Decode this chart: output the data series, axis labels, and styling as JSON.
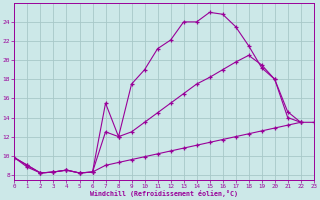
{
  "xlabel": "Windchill (Refroidissement éolien,°C)",
  "background_color": "#cce8e8",
  "grid_color": "#a8c8c8",
  "line_color": "#990099",
  "xlim": [
    0,
    23
  ],
  "ylim": [
    7.5,
    26.0
  ],
  "xticks": [
    0,
    1,
    2,
    3,
    4,
    5,
    6,
    7,
    8,
    9,
    10,
    11,
    12,
    13,
    14,
    15,
    16,
    17,
    18,
    19,
    20,
    21,
    22,
    23
  ],
  "yticks": [
    8,
    10,
    12,
    14,
    16,
    18,
    20,
    22,
    24
  ],
  "curve1_x": [
    0,
    1,
    2,
    3,
    4,
    5,
    6,
    7,
    8,
    9,
    10,
    11,
    12,
    13,
    14,
    15,
    16,
    17,
    18,
    19,
    20,
    21,
    22
  ],
  "curve1_y": [
    9.8,
    9.0,
    8.2,
    8.3,
    8.5,
    8.2,
    8.3,
    15.5,
    12.0,
    17.5,
    19.0,
    21.2,
    22.1,
    24.0,
    24.0,
    25.0,
    24.8,
    23.5,
    21.5,
    19.2,
    18.0,
    14.6,
    13.5
  ],
  "curve2_x": [
    0,
    1,
    2,
    3,
    4,
    5,
    6,
    7,
    8,
    9,
    10,
    11,
    12,
    13,
    14,
    15,
    16,
    17,
    18,
    19,
    20,
    21,
    22
  ],
  "curve2_y": [
    9.8,
    9.0,
    8.2,
    8.3,
    8.5,
    8.2,
    8.3,
    12.5,
    12.0,
    12.5,
    13.5,
    14.5,
    15.5,
    16.5,
    17.5,
    18.2,
    19.0,
    19.8,
    20.5,
    19.5,
    18.0,
    14.0,
    13.5
  ],
  "curve3_x": [
    0,
    1,
    2,
    3,
    4,
    5,
    6,
    7,
    8,
    9,
    10,
    11,
    12,
    13,
    14,
    15,
    16,
    17,
    18,
    19,
    20,
    21,
    22,
    23
  ],
  "curve3_y": [
    9.8,
    8.8,
    8.2,
    8.3,
    8.5,
    8.2,
    8.3,
    9.0,
    9.3,
    9.6,
    9.9,
    10.2,
    10.5,
    10.8,
    11.1,
    11.4,
    11.7,
    12.0,
    12.3,
    12.6,
    12.9,
    13.2,
    13.5,
    13.5
  ]
}
